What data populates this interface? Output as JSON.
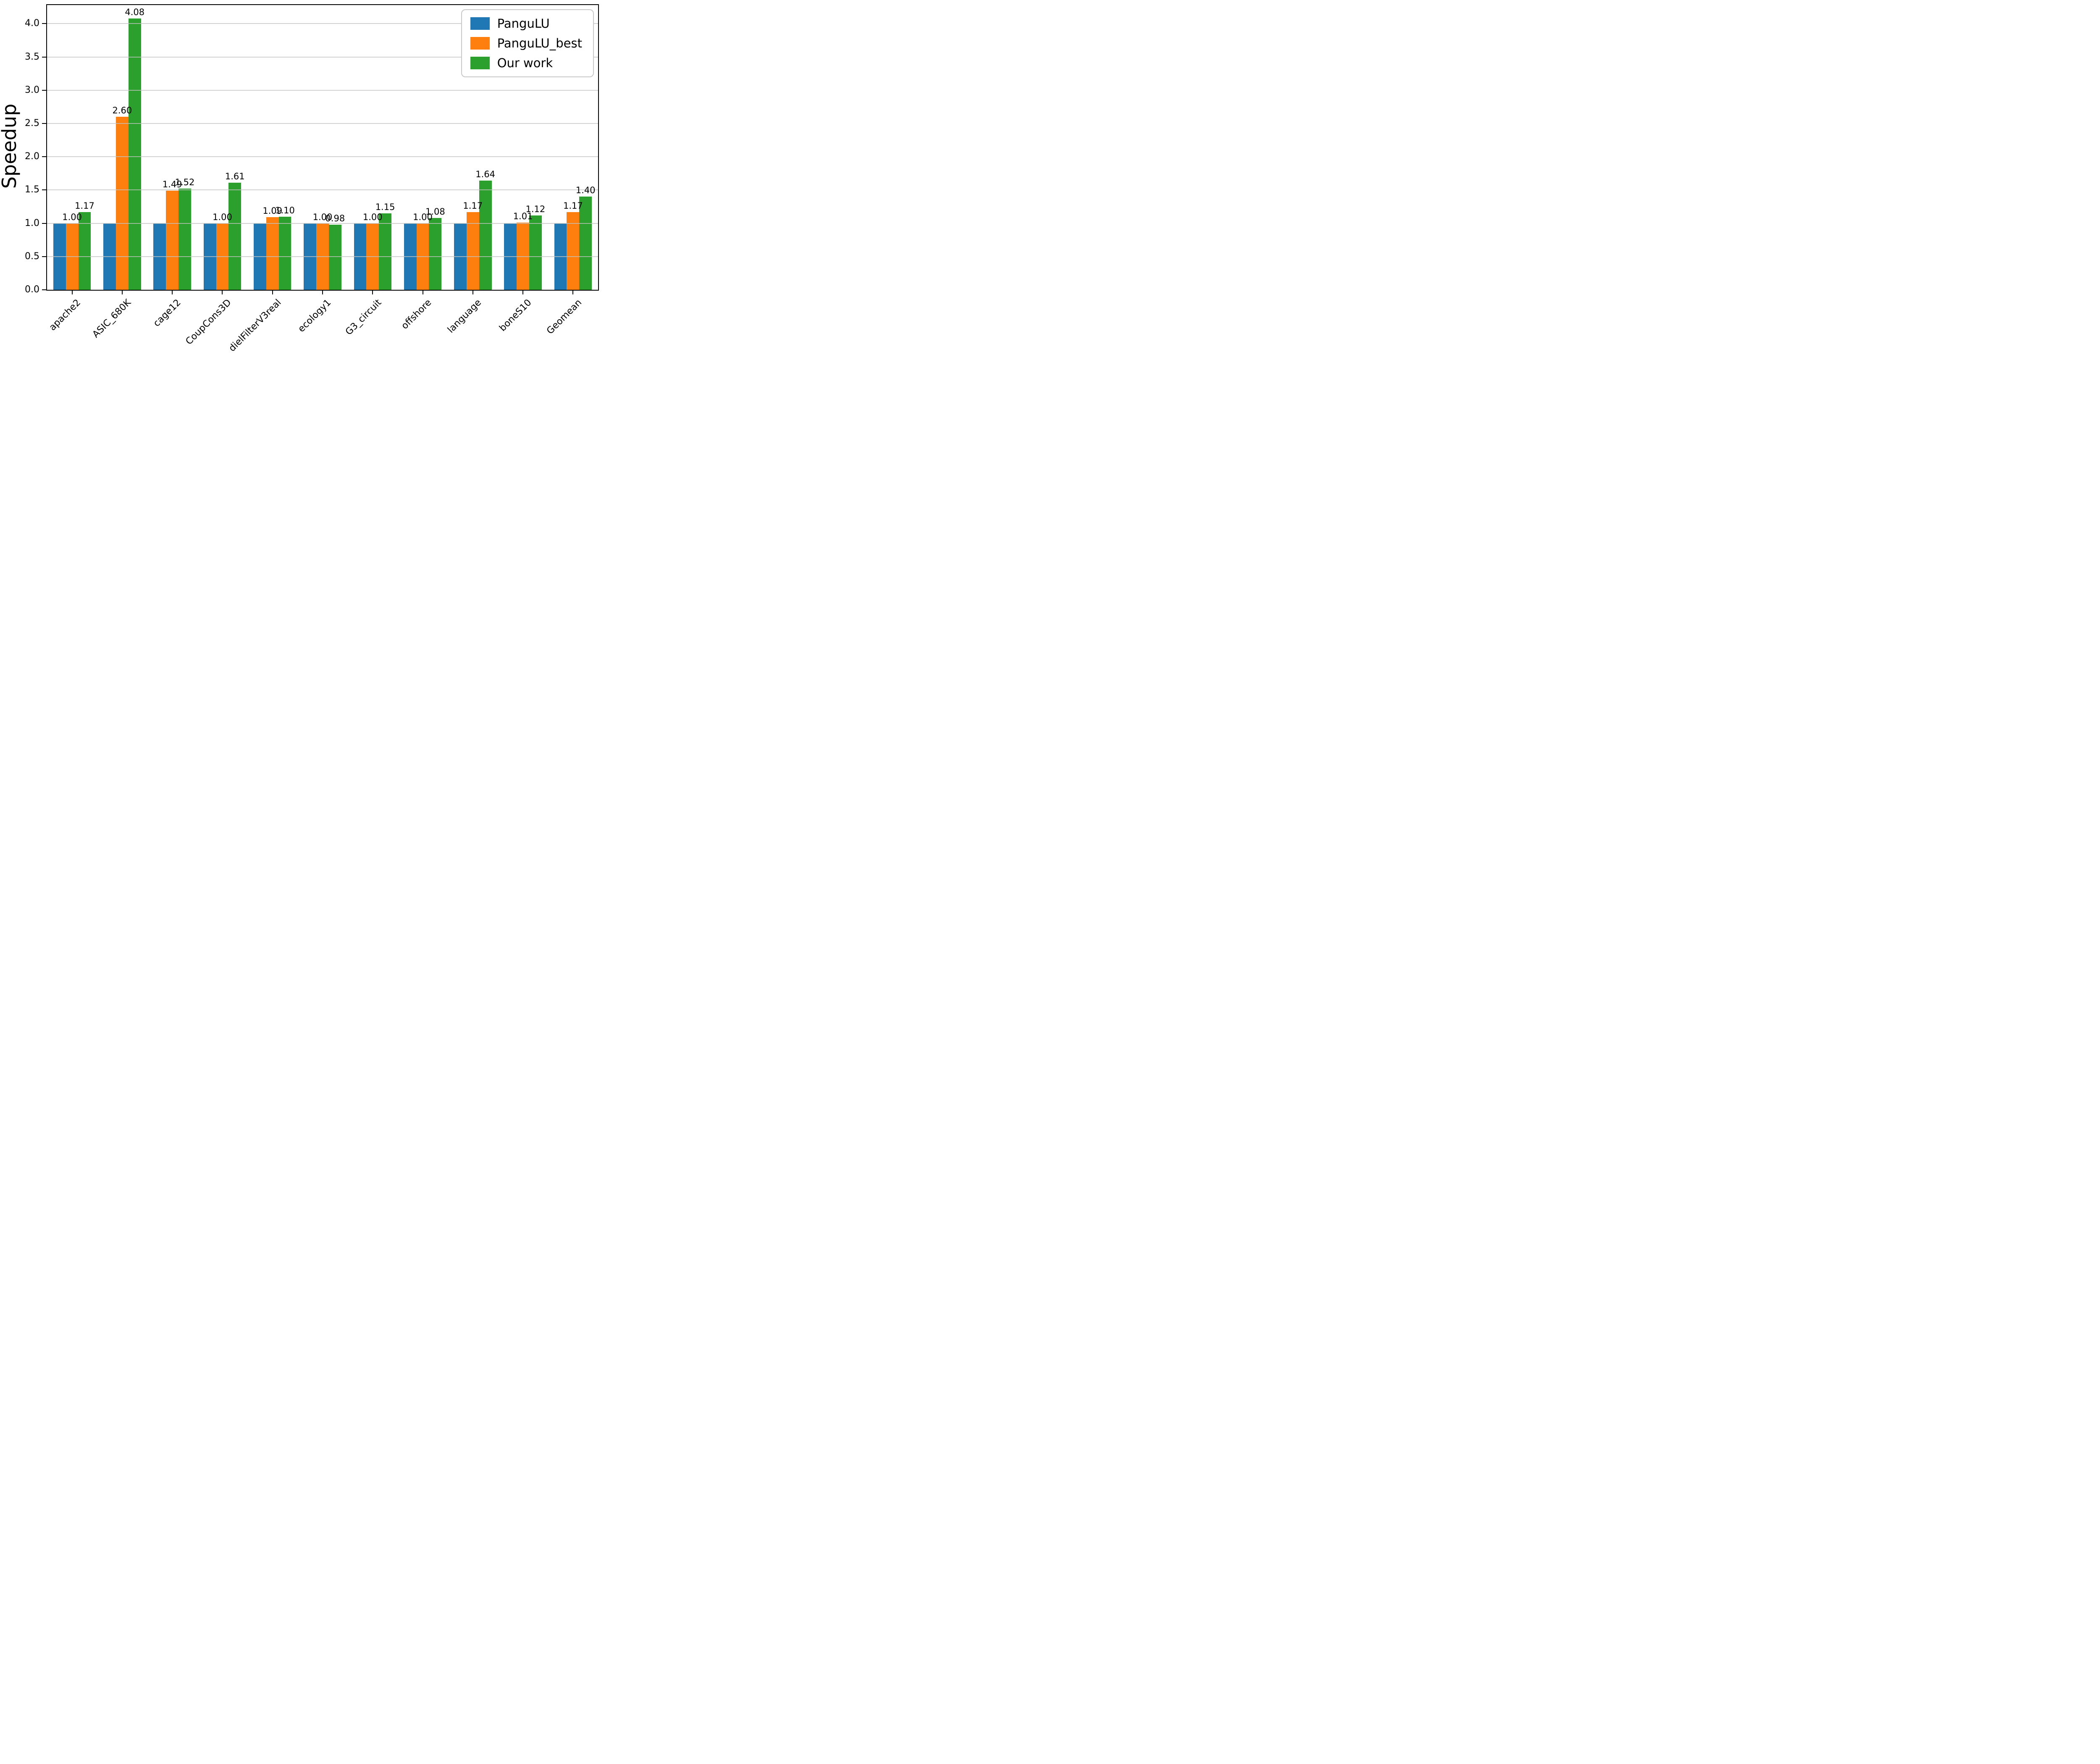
{
  "figure": {
    "background_color": "#ffffff",
    "text_color": "#000000"
  },
  "axis": {
    "spine_color": "#000000",
    "grid_color": "#c3c3c3",
    "ytick_values": [
      0.0,
      0.5,
      1.0,
      1.5,
      2.0,
      2.5,
      3.0,
      3.5,
      4.0
    ],
    "ytick_labels": [
      "0.0",
      "0.5",
      "1.0",
      "1.5",
      "2.0",
      "2.5",
      "3.0",
      "3.5",
      "4.0"
    ]
  },
  "chart_data": {
    "type": "bar",
    "title": "",
    "xlabel": "",
    "ylabel": "Speedup",
    "ylim": [
      0,
      4.28
    ],
    "grid": true,
    "grid_axis": "y",
    "legend_position": "upper right",
    "categories": [
      "apache2",
      "ASIC_680K",
      "cage12",
      "CoupCons3D",
      "dielFilterV3real",
      "ecology1",
      "G3_circuit",
      "offshore",
      "language",
      "boneS10",
      "Geomean"
    ],
    "series": [
      {
        "name": "PanguLU",
        "color": "#1f77b4",
        "show_value_labels": false,
        "values": [
          1.0,
          1.0,
          1.0,
          1.0,
          1.0,
          1.0,
          1.0,
          1.0,
          1.0,
          1.0,
          1.0
        ]
      },
      {
        "name": "PanguLU_best",
        "color": "#ff7f0e",
        "show_value_labels": true,
        "values": [
          1.0,
          2.6,
          1.49,
          1.0,
          1.09,
          1.0,
          1.0,
          1.0,
          1.17,
          1.01,
          1.17
        ],
        "value_labels": [
          "1.00",
          "2.60",
          "1.49",
          "1.00",
          "1.09",
          "1.00",
          "1.00",
          "1.00",
          "1.17",
          "1.01",
          "1.17"
        ]
      },
      {
        "name": "Our work",
        "color": "#2ca02c",
        "show_value_labels": true,
        "values": [
          1.17,
          4.08,
          1.52,
          1.61,
          1.1,
          0.98,
          1.15,
          1.08,
          1.64,
          1.12,
          1.4
        ],
        "value_labels": [
          "1.17",
          "4.08",
          "1.52",
          "1.61",
          "1.10",
          "0.98",
          "1.15",
          "1.08",
          "1.64",
          "1.12",
          "1.40"
        ]
      }
    ]
  }
}
